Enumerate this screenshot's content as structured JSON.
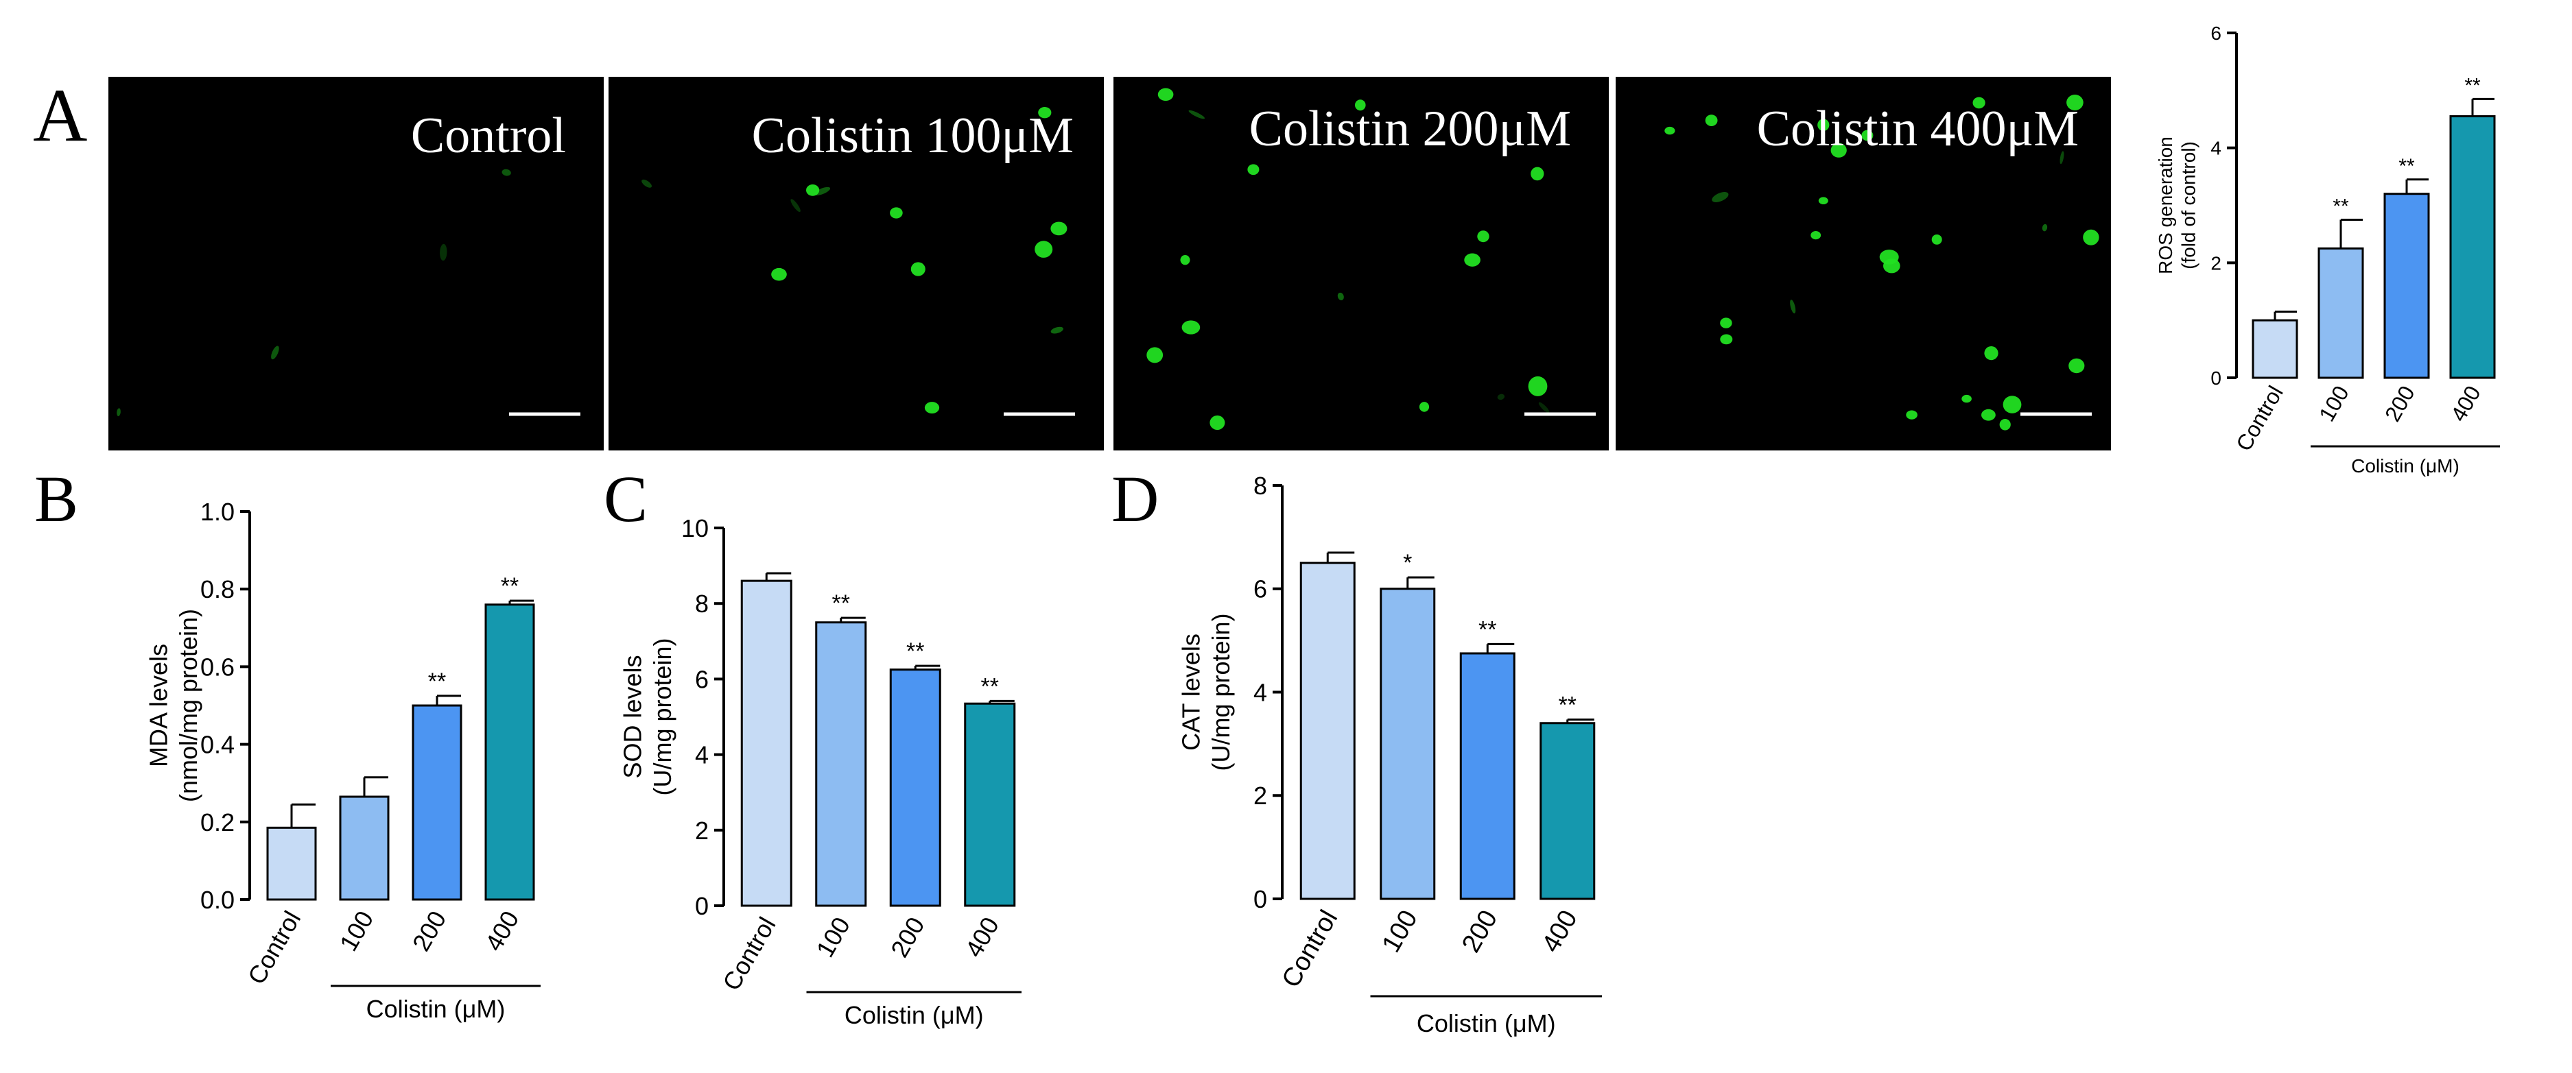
{
  "colors": {
    "control": "#c6dbf5",
    "c100": "#8dbcf2",
    "c200": "#4c95f2",
    "c400": "#1598ae",
    "micrograph_bg": "#000000",
    "cell": "#22e022",
    "scale_bar": "#ffffff"
  },
  "panelA": {
    "label": "A",
    "micrographs": [
      {
        "label": "Control",
        "bright_cells": 0
      },
      {
        "label": "Colistin 100μM",
        "bright_cells": 8
      },
      {
        "label": "Colistin 200μM",
        "bright_cells": 12
      },
      {
        "label": "Colistin 400μM",
        "bright_cells": 22
      }
    ]
  },
  "chart_data": [
    {
      "id": "ros",
      "panel_label": "",
      "type": "bar",
      "categories": [
        "Control",
        "100",
        "200",
        "400"
      ],
      "values": [
        1.0,
        2.25,
        3.2,
        4.55
      ],
      "errors": [
        0.15,
        0.5,
        0.25,
        0.3
      ],
      "significance": [
        "",
        "**",
        "**",
        "**"
      ],
      "ylabel": [
        "ROS generation",
        "(fold of control)"
      ],
      "group_label": "Colistin (μM)",
      "ylim": [
        0,
        6
      ],
      "yticks": [
        "0",
        "2",
        "4",
        "6"
      ]
    },
    {
      "id": "mda",
      "panel_label": "B",
      "type": "bar",
      "categories": [
        "Control",
        "100",
        "200",
        "400"
      ],
      "values": [
        0.185,
        0.265,
        0.5,
        0.76
      ],
      "errors": [
        0.06,
        0.05,
        0.025,
        0.01
      ],
      "significance": [
        "",
        "",
        "**",
        "**"
      ],
      "ylabel": [
        "MDA levels",
        "(nmol/mg protein)"
      ],
      "group_label": "Colistin (μM)",
      "ylim": [
        0,
        1.0
      ],
      "yticks": [
        "0.0",
        "0.2",
        "0.4",
        "0.6",
        "0.8",
        "1.0"
      ]
    },
    {
      "id": "sod",
      "panel_label": "C",
      "type": "bar",
      "categories": [
        "Control",
        "100",
        "200",
        "400"
      ],
      "values": [
        8.6,
        7.5,
        6.25,
        5.35
      ],
      "errors": [
        0.2,
        0.12,
        0.1,
        0.07
      ],
      "significance": [
        "",
        "**",
        "**",
        "**"
      ],
      "ylabel": [
        "SOD levels",
        "(U/mg protein)"
      ],
      "group_label": "Colistin (μM)",
      "ylim": [
        0,
        10
      ],
      "yticks": [
        "0",
        "2",
        "4",
        "6",
        "8",
        "10"
      ]
    },
    {
      "id": "cat",
      "panel_label": "D",
      "type": "bar",
      "categories": [
        "Control",
        "100",
        "200",
        "400"
      ],
      "values": [
        6.5,
        6.0,
        4.75,
        3.4
      ],
      "errors": [
        0.2,
        0.22,
        0.18,
        0.07
      ],
      "significance": [
        "",
        "*",
        "**",
        "**"
      ],
      "ylabel": [
        "CAT levels",
        "(U/mg protein)"
      ],
      "group_label": "Colistin (μM)",
      "ylim": [
        0,
        8
      ],
      "yticks": [
        "0",
        "2",
        "4",
        "6",
        "8"
      ]
    }
  ]
}
